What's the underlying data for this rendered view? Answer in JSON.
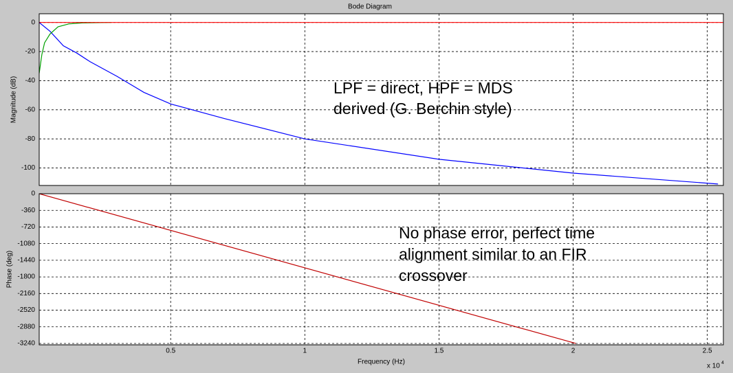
{
  "chart_data": [
    {
      "type": "line",
      "title": "Bode Diagram",
      "ylabel": "Magnitude (dB)",
      "xlim": [
        100,
        25600
      ],
      "xticks": [
        5000,
        10000,
        15000,
        20000,
        25000
      ],
      "ylim": [
        -112,
        6
      ],
      "yticks": [
        0,
        -20,
        -40,
        -60,
        -80,
        -100
      ],
      "grid": true,
      "series": [
        {
          "color": "#0000ff",
          "x": [
            100,
            500,
            1000,
            1500,
            2000,
            3000,
            4000,
            5000,
            7000,
            10000,
            15000,
            20000,
            25400
          ],
          "values": [
            0,
            -6,
            -16,
            -21,
            -27,
            -37,
            -48,
            -56,
            -66,
            -80,
            -94,
            -103.5,
            -111
          ]
        },
        {
          "color": "#00a000",
          "x": [
            100,
            200,
            300,
            500,
            800,
            1200,
            1700,
            2800
          ],
          "values": [
            -35,
            -22,
            -14,
            -8,
            -3,
            -1,
            -0.3,
            0
          ]
        },
        {
          "color": "#ff0000",
          "x": [
            100,
            25600
          ],
          "values": [
            0,
            0
          ]
        }
      ],
      "annotations": [
        {
          "lines": [
            "LPF = direct, HPF = MDS",
            "derived (G. Berchin style)"
          ]
        }
      ]
    },
    {
      "type": "line",
      "ylabel": "Phase (deg)",
      "xlabel": "Frequency  (Hz)",
      "x_multiplier": {
        "text": "x 10",
        "superscript": "4"
      },
      "xlim": [
        100,
        25600
      ],
      "xticks": [
        {
          "value": 5000,
          "label": "0.5"
        },
        {
          "value": 10000,
          "label": "1"
        },
        {
          "value": 15000,
          "label": "1.5"
        },
        {
          "value": 20000,
          "label": "2"
        },
        {
          "value": 25000,
          "label": "2.5"
        }
      ],
      "ylim": [
        -3270,
        0
      ],
      "yticks": [
        0,
        -360,
        -720,
        -1080,
        -1440,
        -1800,
        -2160,
        -2520,
        -2880,
        -3240
      ],
      "grid": true,
      "series": [
        {
          "color": "#c00000",
          "x": [
            100,
            20100
          ],
          "values": [
            0,
            -3240
          ]
        }
      ],
      "annotations": [
        {
          "lines": [
            "No phase error, perfect time",
            "alignment similar to an FIR",
            "crossover"
          ]
        }
      ]
    }
  ]
}
